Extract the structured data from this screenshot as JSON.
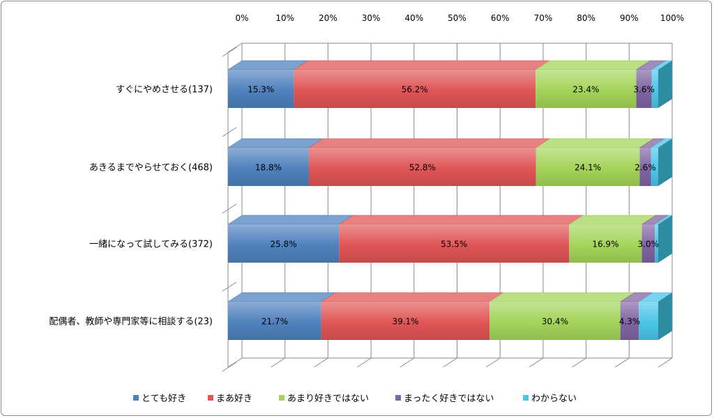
{
  "colors": {
    "とても好き": "#4f81bd",
    "まあ好き": "#e05555",
    "あまり好きではない": "#a4d45a",
    "まったく好きではない": "#8064a2",
    "わからない": "#4bc6e8"
  },
  "chart_data": {
    "type": "bar",
    "orientation": "horizontal",
    "stacked": "percent",
    "three_d": true,
    "xlim": [
      0,
      100
    ],
    "x_ticks": [
      "0%",
      "10%",
      "20%",
      "30%",
      "40%",
      "50%",
      "60%",
      "70%",
      "80%",
      "90%",
      "100%"
    ],
    "x_tick_position": "top",
    "legend_position": "bottom",
    "categories": [
      "すぐにやめさせる(137)",
      "あきるまでやらせておく(468)",
      "一緒になって試してみる(372)",
      "配偶者、教師や専門家等に相談する(23)"
    ],
    "series": [
      {
        "name": "とても好き",
        "values": [
          15.3,
          18.8,
          25.8,
          21.7
        ],
        "labels": [
          "15.3%",
          "18.8%",
          "25.8%",
          "21.7%"
        ]
      },
      {
        "name": "まあ好き",
        "values": [
          56.2,
          52.8,
          53.5,
          39.1
        ],
        "labels": [
          "56.2%",
          "52.8%",
          "53.5%",
          "39.1%"
        ]
      },
      {
        "name": "あまり好きではない",
        "values": [
          23.4,
          24.1,
          16.9,
          30.4
        ],
        "labels": [
          "23.4%",
          "24.1%",
          "16.9%",
          "30.4%"
        ]
      },
      {
        "name": "まったく好きではない",
        "values": [
          3.6,
          2.6,
          3.0,
          4.3
        ],
        "labels": [
          "3.6%",
          "2.6%",
          "3.0%",
          "4.3%"
        ]
      },
      {
        "name": "わからない",
        "values": [
          1.5,
          1.7,
          0.8,
          4.5
        ],
        "labels": [
          "",
          "",
          "",
          ""
        ]
      }
    ]
  }
}
